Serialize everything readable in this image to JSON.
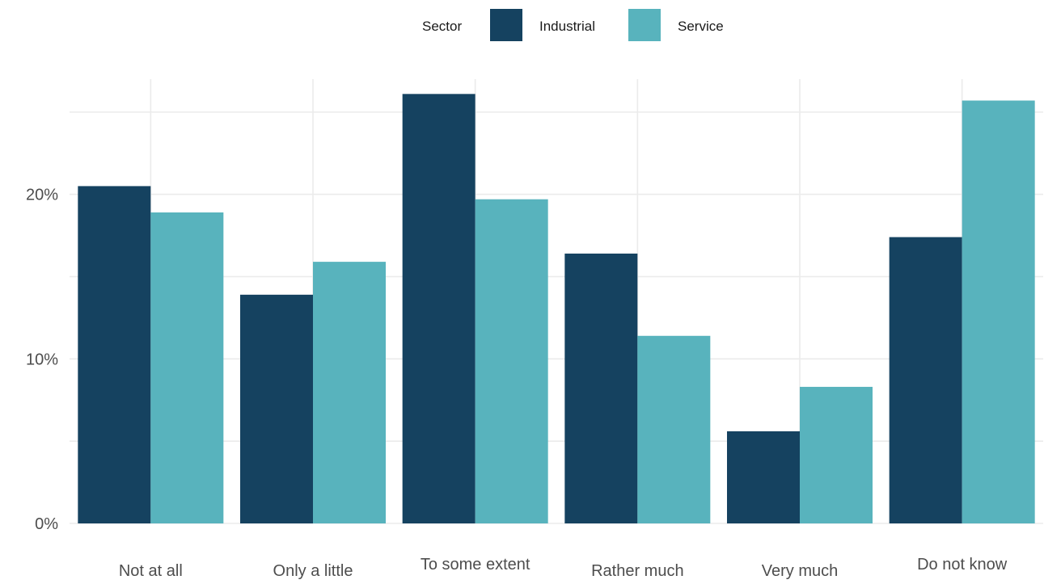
{
  "chart_data": {
    "type": "bar",
    "title": "",
    "xlabel": "",
    "ylabel": "",
    "ylim": [
      0,
      0.27
    ],
    "y_ticks": [
      {
        "value": 0,
        "label": "0%"
      },
      {
        "value": 0.1,
        "label": "10%"
      },
      {
        "value": 0.2,
        "label": "20%"
      }
    ],
    "y_minor_ticks": [
      0.05,
      0.15,
      0.25
    ],
    "grid": true,
    "categories": [
      "Not at all",
      "Only a little",
      "To some extent",
      "Rather much",
      "Very much",
      "Do not know"
    ],
    "legend": {
      "title": "Sector",
      "position": "top"
    },
    "series": [
      {
        "name": "Industrial",
        "color": "#154260",
        "values": [
          0.205,
          0.139,
          0.261,
          0.164,
          0.056,
          0.174
        ]
      },
      {
        "name": "Service",
        "color": "#58b3bd",
        "values": [
          0.189,
          0.159,
          0.197,
          0.114,
          0.083,
          0.257
        ]
      }
    ]
  }
}
